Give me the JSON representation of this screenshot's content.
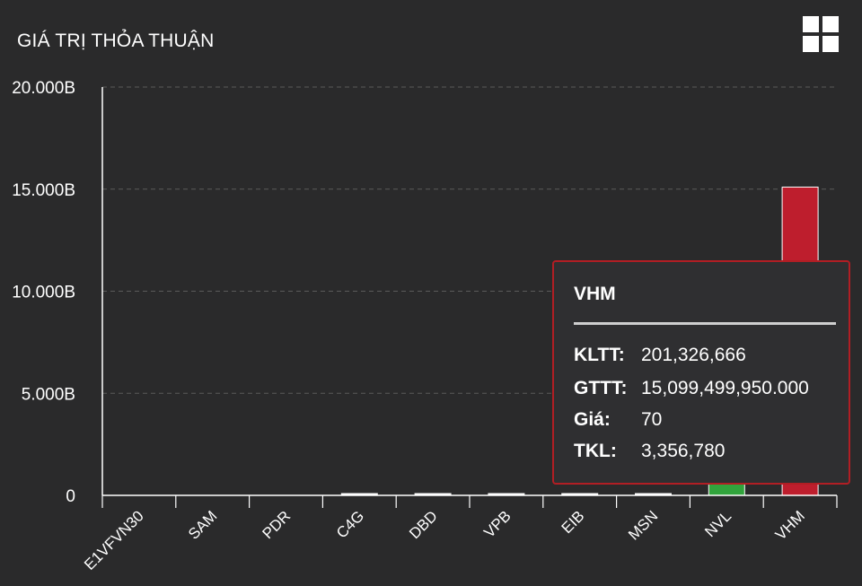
{
  "header": {
    "title": "GIÁ TRỊ THỎA THUẬN",
    "menu_icon": "grid-menu-icon"
  },
  "colors": {
    "background": "#2a2a2b",
    "up": "#31a43c",
    "down": "#be1e2d",
    "neutral": "#ffffff",
    "tooltip_border": "#b11e24"
  },
  "chart_data": {
    "type": "bar",
    "title": "GIÁ TRỊ THỎA THUẬN",
    "categories": [
      "E1VFVN30",
      "SAM",
      "PDR",
      "C4G",
      "DBD",
      "VPB",
      "EIB",
      "MSN",
      "NVL",
      "VHM"
    ],
    "values": [
      0,
      0,
      0,
      60,
      70,
      70,
      70,
      70,
      1500,
      15099.49995
    ],
    "bar_colors": [
      "#ffffff",
      "#ffffff",
      "#ffffff",
      "#ffffff",
      "#ffffff",
      "#ffffff",
      "#ffffff",
      "#ffffff",
      "#31a43c",
      "#be1e2d"
    ],
    "ylim": [
      0,
      20000
    ],
    "yticks": [
      0,
      5000,
      10000,
      15000,
      20000
    ],
    "ytick_labels": [
      "0",
      "5.000B",
      "10.000B",
      "15.000B",
      "20.000B"
    ],
    "grid": true,
    "legend": "none"
  },
  "tooltip": {
    "title": "VHM",
    "rows": [
      {
        "label": "KLTT:",
        "value": "201,326,666"
      },
      {
        "label": "GTTT:",
        "value": "15,099,499,950.000"
      },
      {
        "label": "Giá:",
        "value": "70"
      },
      {
        "label": "TKL:",
        "value": "3,356,780"
      }
    ]
  }
}
